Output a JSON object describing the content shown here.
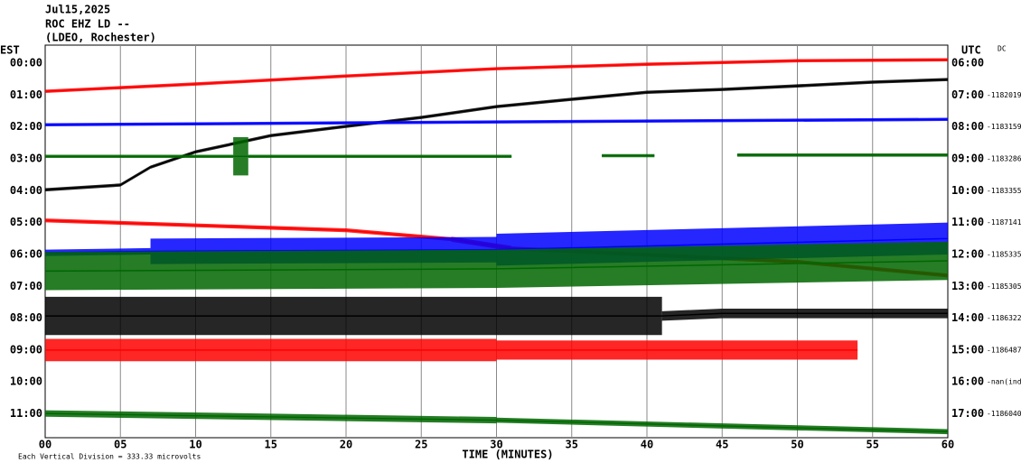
{
  "chart_data": {
    "type": "helicorder",
    "title": "Jul15,2025",
    "subtitle": "ROC EHZ LD --",
    "station": "(LDEO, Rochester)",
    "left_axis_title": "EST",
    "right_axis_title": "UTC",
    "offset_title": "DC",
    "xlabel": "TIME (MINUTES)",
    "footnote": "Each Vertical Division =  333.33 microvolts",
    "xlim": [
      0,
      60
    ],
    "xticks": [
      {
        "value": 0,
        "label": "00"
      },
      {
        "value": 5,
        "label": "05"
      },
      {
        "value": 10,
        "label": "10"
      },
      {
        "value": 15,
        "label": "15"
      },
      {
        "value": 20,
        "label": "20"
      },
      {
        "value": 25,
        "label": "25"
      },
      {
        "value": 30,
        "label": "30"
      },
      {
        "value": 35,
        "label": "35"
      },
      {
        "value": 40,
        "label": "40"
      },
      {
        "value": 45,
        "label": "45"
      },
      {
        "value": 50,
        "label": "50"
      },
      {
        "value": 55,
        "label": "55"
      },
      {
        "value": 60,
        "label": "60"
      }
    ],
    "ylim": [
      -0.57,
      11.75
    ],
    "yticks": [
      {
        "value": 0,
        "label": "00:00"
      },
      {
        "value": 1,
        "label": "01:00"
      },
      {
        "value": 2,
        "label": "02:00"
      },
      {
        "value": 3,
        "label": "03:00"
      },
      {
        "value": 4,
        "label": "04:00"
      },
      {
        "value": 5,
        "label": "05:00"
      },
      {
        "value": 6,
        "label": "06:00"
      },
      {
        "value": 7,
        "label": "07:00"
      },
      {
        "value": 8,
        "label": "08:00"
      },
      {
        "value": 9,
        "label": "09:00"
      },
      {
        "value": 10,
        "label": "10:00"
      },
      {
        "value": 11,
        "label": "11:00"
      }
    ],
    "y2ticks": [
      {
        "value": 0,
        "label": "06:00"
      },
      {
        "value": 1,
        "label": "07:00"
      },
      {
        "value": 2,
        "label": "08:00"
      },
      {
        "value": 3,
        "label": "09:00"
      },
      {
        "value": 4,
        "label": "10:00"
      },
      {
        "value": 5,
        "label": "11:00"
      },
      {
        "value": 6,
        "label": "12:00"
      },
      {
        "value": 7,
        "label": "13:00"
      },
      {
        "value": 8,
        "label": "14:00"
      },
      {
        "value": 9,
        "label": "15:00"
      },
      {
        "value": 10,
        "label": "16:00"
      },
      {
        "value": 11,
        "label": "17:00"
      }
    ],
    "dc_offsets": [
      null,
      "-1182019",
      "-1183159",
      "-1183286",
      "-1183355",
      "-1187141",
      "-1185335",
      "-1185305",
      "-1186322",
      "-1186487",
      "-nan(ind",
      "-1186040"
    ],
    "grid": true,
    "series": [
      {
        "color": "#ff0000",
        "x": [
          0,
          10,
          20,
          30,
          40,
          50,
          60
        ],
        "values": [
          0.88,
          0.65,
          0.4,
          0.17,
          0.03,
          -0.08,
          -0.11
        ],
        "amplitude": [
          0.05,
          0.05,
          0.05,
          0.05,
          0.05,
          0.05,
          0.05
        ]
      },
      {
        "color": "#000000",
        "x": [
          0,
          5,
          7,
          10,
          15,
          20,
          25,
          30,
          35,
          40,
          45,
          50,
          55,
          60
        ],
        "values": [
          3.97,
          3.82,
          3.26,
          2.78,
          2.27,
          1.98,
          1.7,
          1.36,
          1.13,
          0.91,
          0.82,
          0.71,
          0.59,
          0.51
        ],
        "amplitude": [
          0.05,
          0.05,
          0.05,
          0.05,
          0.05,
          0.05,
          0.05,
          0.05,
          0.05,
          0.05,
          0.05,
          0.05,
          0.05,
          0.05
        ]
      },
      {
        "color": "#0000ff",
        "x": [
          0,
          30,
          60
        ],
        "values": [
          1.93,
          1.84,
          1.76
        ],
        "amplitude": [
          0.05,
          0.05,
          0.05
        ]
      },
      {
        "color": "#006600",
        "x": [
          0,
          12.5,
          13.5,
          31,
          34,
          37,
          40.5,
          43,
          46,
          60
        ],
        "values": [
          2.92,
          2.92,
          2.92,
          2.92,
          null,
          2.9,
          2.9,
          null,
          2.88,
          2.88
        ],
        "amplitude": [
          0.05,
          0.6,
          0.05,
          0.05,
          null,
          0.05,
          0.05,
          null,
          0.05,
          0.05
        ]
      },
      {
        "color": "#ff0000",
        "x": [
          0,
          20,
          27,
          31,
          50,
          60
        ],
        "values": [
          4.93,
          5.24,
          5.52,
          5.81,
          6.23,
          6.66
        ],
        "amplitude": [
          0.06,
          0.06,
          0.08,
          0.06,
          0.06,
          0.06
        ]
      },
      {
        "color": "#0000ff",
        "x": [
          0,
          7,
          30,
          60
        ],
        "values": [
          5.95,
          5.9,
          5.85,
          5.5
        ],
        "amplitude": [
          0.1,
          0.4,
          0.5,
          0.3
        ]
      },
      {
        "color": "#006600",
        "x": [
          0,
          30,
          60
        ],
        "values": [
          6.52,
          6.45,
          6.2
        ],
        "amplitude": [
          0.6,
          0.6,
          0.6
        ]
      },
      {
        "color": "#000000",
        "x": [
          0,
          41,
          45,
          60
        ],
        "values": [
          7.93,
          7.93,
          7.85,
          7.85
        ],
        "amplitude": [
          0.6,
          0.15,
          0.15,
          0.15
        ]
      },
      {
        "color": "#ff0000",
        "x": [
          0,
          30,
          54
        ],
        "values": [
          9.0,
          9.0,
          9.0
        ],
        "amplitude": [
          0.35,
          0.3,
          0.3
        ]
      },
      {
        "color": "#006600",
        "x": [
          0,
          30,
          60
        ],
        "values": [
          10.99,
          11.2,
          11.56
        ],
        "amplitude": [
          0.1,
          0.08,
          0.08
        ]
      }
    ]
  }
}
